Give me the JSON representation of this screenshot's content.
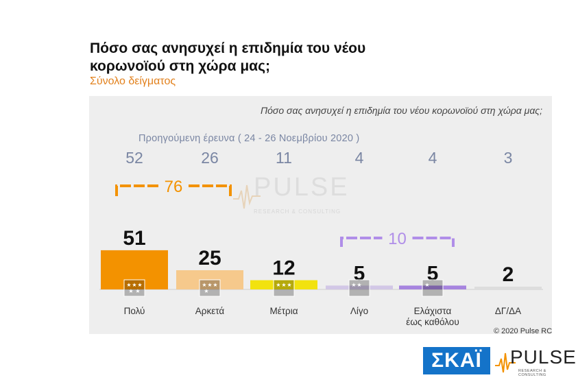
{
  "title": "Πόσο σας ανησυχεί η επιδημία του νέου κορωνοϊού στη χώρα μας;",
  "subtitle": "Σύνολο δείγματος",
  "question": "Πόσο σας ανησυχεί η επιδημία του νέου κορωνοϊού στη χώρα μας;",
  "previous_survey_label": "Προηγούμενη έρευνα  ( 24 - 26  Νοεμβρίου  2020 )",
  "copyright": "© 2020 Pulse RC",
  "logos": {
    "skai": "ΣΚΑΪ",
    "pulse": "PULSE",
    "pulse_sub": "RESEARCH & CONSULTING"
  },
  "watermark": {
    "word": "PULSE",
    "sub": "RESEARCH & CONSULTING"
  },
  "chart_data": {
    "type": "bar",
    "categories": [
      "Πολύ",
      "Αρκετά",
      "Μέτρια",
      "Λίγο",
      "Ελάχιστα\nέως καθόλου",
      "ΔΓ/ΔΑ"
    ],
    "values": [
      51,
      25,
      12,
      5,
      5,
      2
    ],
    "previous_values": [
      52,
      26,
      11,
      4,
      4,
      3
    ],
    "colors": [
      "#f39200",
      "#f6c98c",
      "#f2e20f",
      "#d2c7e6",
      "#a784df",
      "#dddddd"
    ],
    "stars": [
      5,
      4,
      3,
      2,
      1,
      0
    ],
    "groups": [
      {
        "label": "76",
        "from": 0,
        "to": 1,
        "color": "#f39200"
      },
      {
        "label": "10",
        "from": 3,
        "to": 4,
        "color": "#b08ee8"
      }
    ],
    "ylim": [
      0,
      100
    ]
  }
}
